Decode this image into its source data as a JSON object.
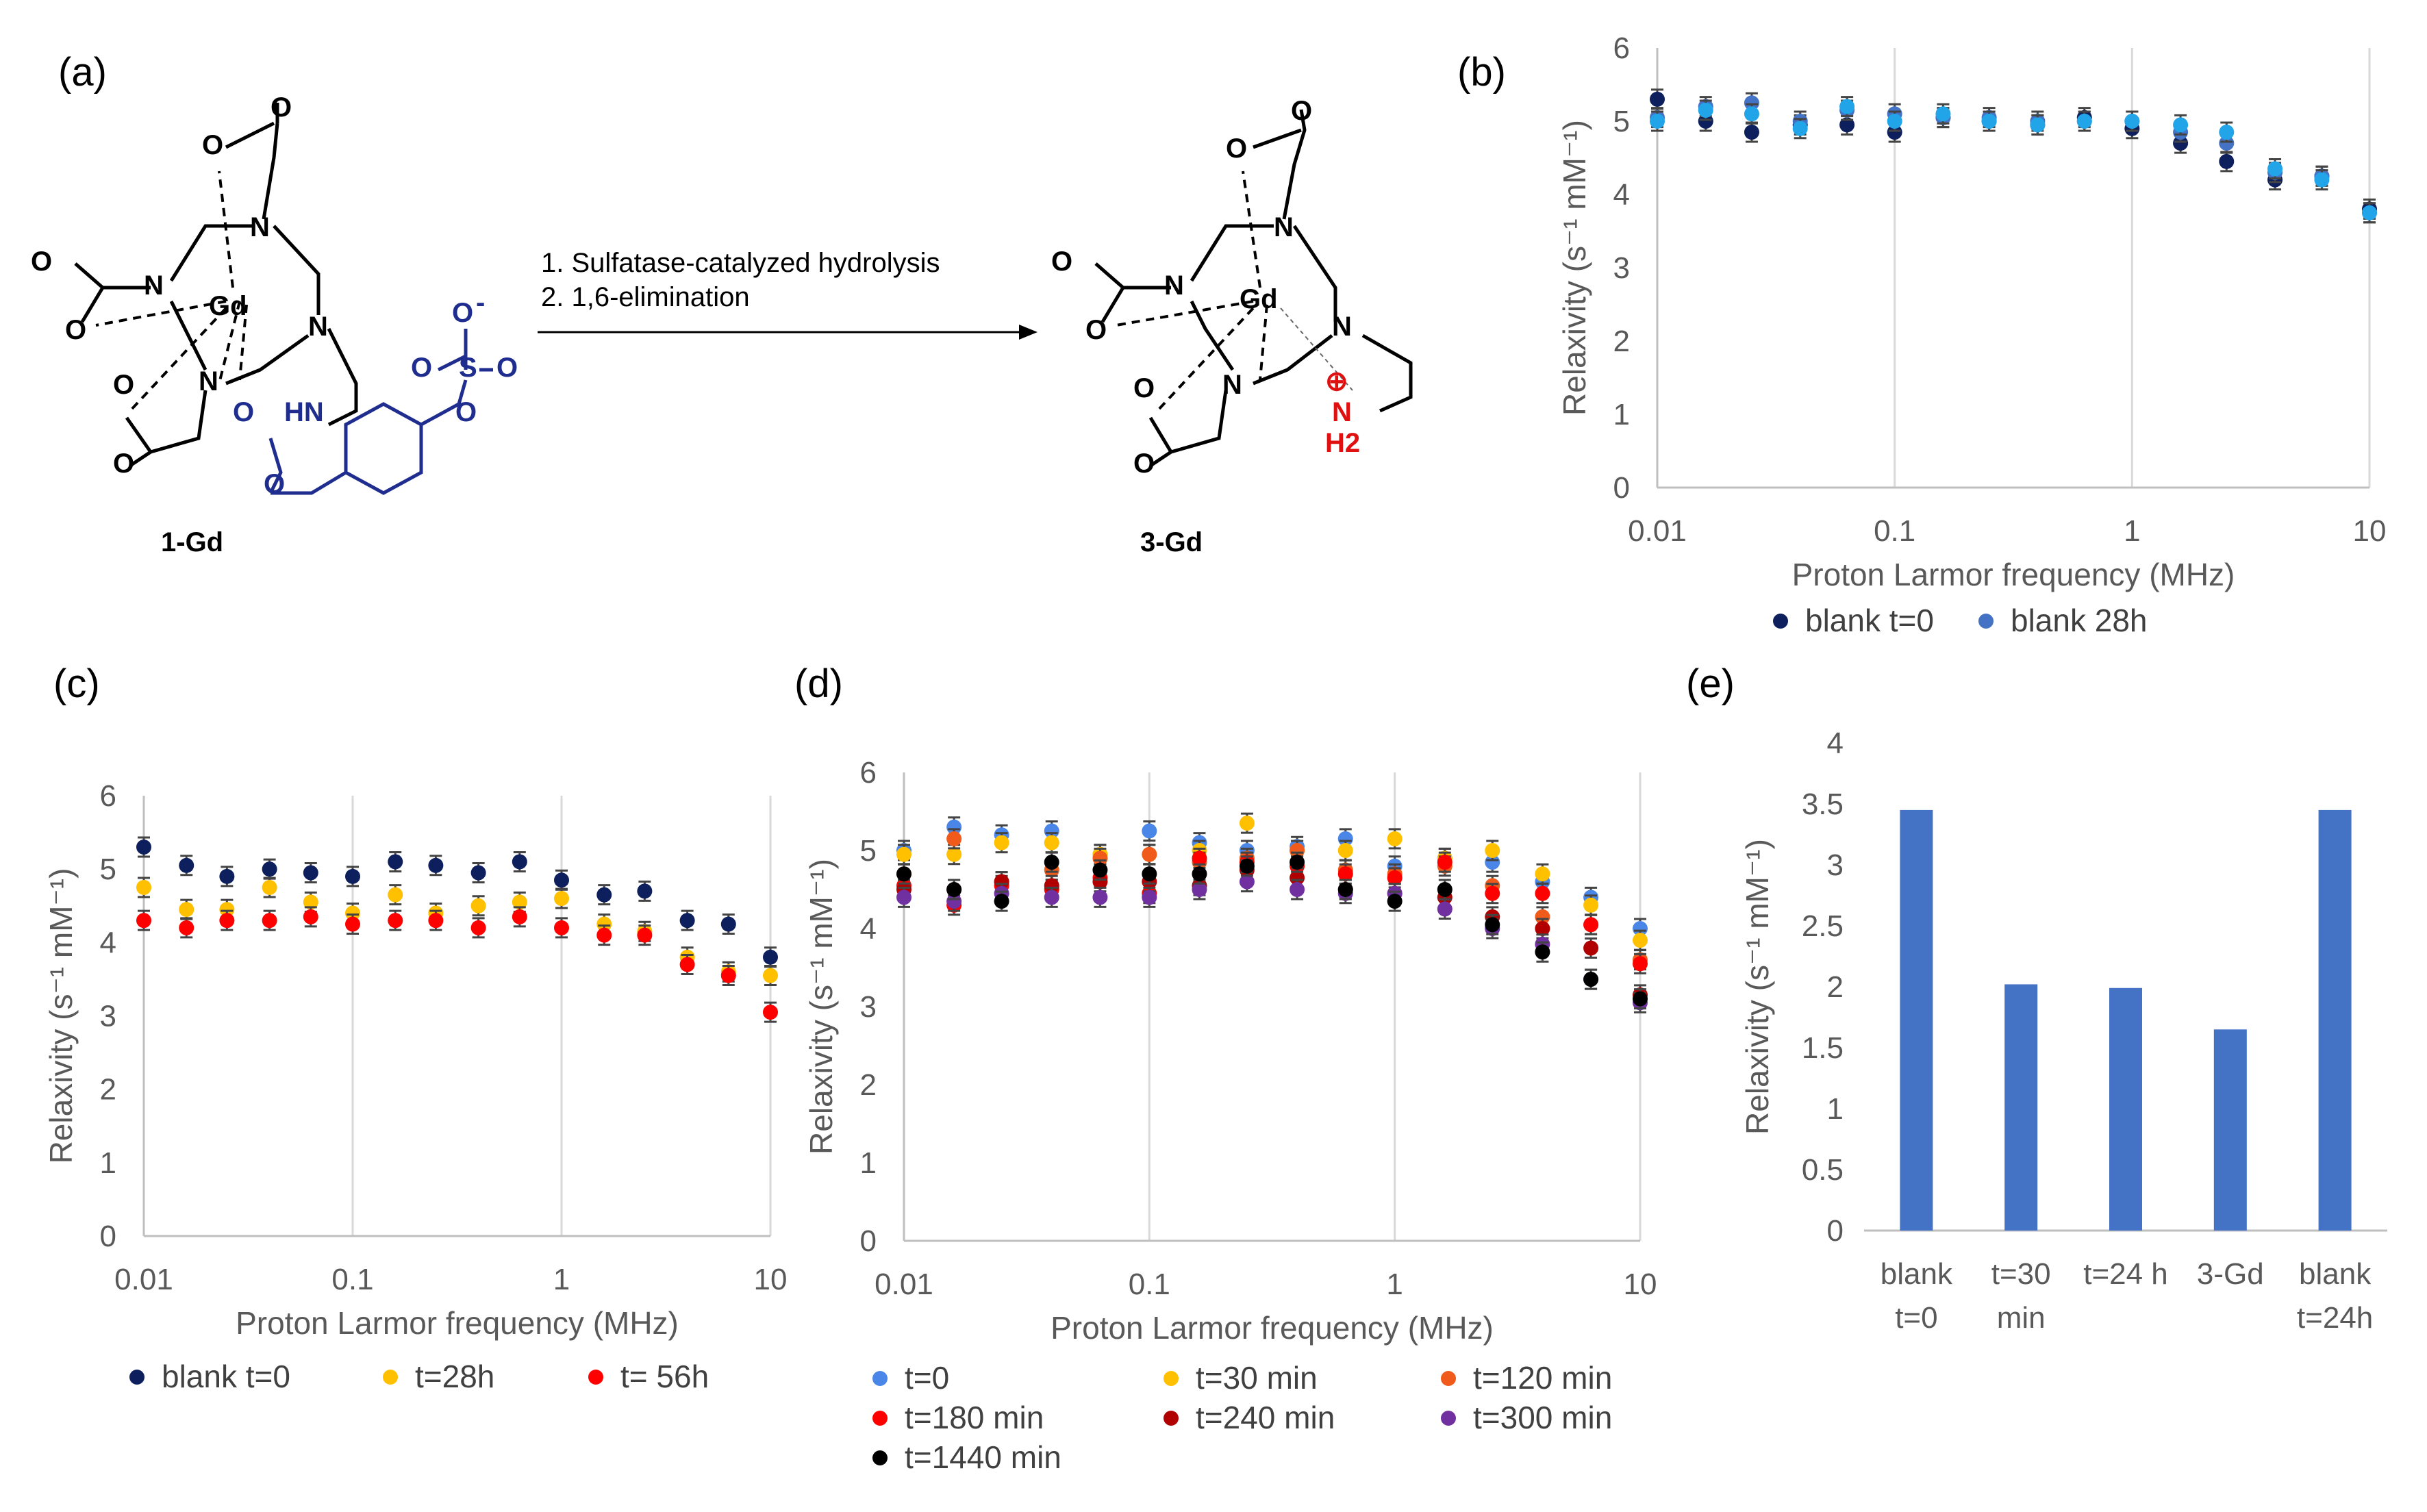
{
  "panel_labels": [
    "(a)",
    "(b)",
    "(c)",
    "(d)",
    "(e)"
  ],
  "scheme": {
    "reactant_label": "1-Gd",
    "product_label": "3-Gd",
    "step1": "1. Sulfatase-catalyzed hydrolysis",
    "step2": "2. 1,6-elimination",
    "atoms": {
      "gd": "Gd",
      "n": "N",
      "o": "O",
      "s": "S",
      "hn": "HN",
      "nh": "N",
      "h2": "H2",
      "minus": "-",
      "plus": "⊕"
    }
  },
  "colors": {
    "navy": "#0d1f5c",
    "mid_blue": "#4472c4",
    "cyan": "#22a5e8",
    "light_blue": "#4a86e8",
    "yellow": "#ffc000",
    "orange": "#f05a1a",
    "red": "#ff0000",
    "dark_red": "#b00000",
    "purple": "#7030a0",
    "black": "#000000",
    "bar": "#4472c4"
  },
  "chart_data": [
    {
      "id": "b",
      "type": "scatter",
      "x_scale": "log",
      "xlim": [
        0.01,
        10
      ],
      "ylim": [
        0,
        6
      ],
      "x_ticks": [
        "0.01",
        "0.1",
        "1",
        "10"
      ],
      "y_ticks": [
        "0",
        "1",
        "2",
        "3",
        "4",
        "5",
        "6"
      ],
      "xlabel": "Proton Larmor frequency (MHz)",
      "ylabel": "Relaxivity (s⁻¹ mM⁻¹)",
      "x": [
        0.01,
        0.016,
        0.025,
        0.04,
        0.063,
        0.1,
        0.16,
        0.25,
        0.4,
        0.63,
        1.0,
        1.6,
        2.5,
        4.0,
        6.3,
        10.0
      ],
      "series": [
        {
          "name": "blank t=0",
          "color_key": "navy",
          "values": [
            5.3,
            5.0,
            4.85,
            4.95,
            4.95,
            4.85,
            5.05,
            5.0,
            4.95,
            5.05,
            4.9,
            4.7,
            4.45,
            4.2,
            4.25,
            3.8
          ]
        },
        {
          "name": "blank 28h",
          "color_key": "mid_blue",
          "values": [
            5.05,
            5.2,
            5.25,
            5.0,
            5.15,
            5.1,
            5.05,
            5.05,
            5.0,
            5.0,
            5.0,
            4.85,
            4.7,
            4.3,
            4.25,
            3.75
          ]
        },
        {
          "name": "",
          "color_key": "cyan",
          "values": [
            5.0,
            5.15,
            5.1,
            4.9,
            5.2,
            5.0,
            5.1,
            5.0,
            4.95,
            5.0,
            5.0,
            4.95,
            4.85,
            4.35,
            4.2,
            3.75
          ]
        }
      ],
      "legend": [
        {
          "label": "blank t=0",
          "color_key": "navy"
        },
        {
          "label": "blank 28h",
          "color_key": "mid_blue"
        }
      ]
    },
    {
      "id": "c",
      "type": "scatter",
      "x_scale": "log",
      "xlim": [
        0.01,
        10
      ],
      "ylim": [
        0,
        6
      ],
      "x_ticks": [
        "0.01",
        "0.1",
        "1",
        "10"
      ],
      "y_ticks": [
        "0",
        "1",
        "2",
        "3",
        "4",
        "5",
        "6"
      ],
      "xlabel": "Proton Larmor frequency (MHz)",
      "ylabel": "Relaxivity (s⁻¹ mM⁻¹)",
      "x": [
        0.01,
        0.016,
        0.025,
        0.04,
        0.063,
        0.1,
        0.16,
        0.25,
        0.4,
        0.63,
        1.0,
        1.6,
        2.5,
        4.0,
        6.3,
        10.0
      ],
      "series": [
        {
          "name": "blank t=0",
          "color_key": "navy",
          "values": [
            5.3,
            5.05,
            4.9,
            5.0,
            4.95,
            4.9,
            5.1,
            5.05,
            4.95,
            5.1,
            4.85,
            4.65,
            4.7,
            4.3,
            4.25,
            3.8
          ]
        },
        {
          "name": "t=28h",
          "color_key": "yellow",
          "values": [
            4.75,
            4.45,
            4.45,
            4.75,
            4.55,
            4.4,
            4.65,
            4.4,
            4.5,
            4.55,
            4.6,
            4.25,
            4.15,
            3.8,
            3.6,
            3.55
          ]
        },
        {
          "name": "t= 56h",
          "color_key": "red",
          "values": [
            4.3,
            4.2,
            4.3,
            4.3,
            4.35,
            4.25,
            4.3,
            4.3,
            4.2,
            4.35,
            4.2,
            4.1,
            4.1,
            3.7,
            3.55,
            3.05
          ]
        }
      ],
      "legend": [
        {
          "label": "blank t=0",
          "color_key": "navy"
        },
        {
          "label": "t=28h",
          "color_key": "yellow"
        },
        {
          "label": "t= 56h",
          "color_key": "red"
        }
      ]
    },
    {
      "id": "d",
      "type": "scatter",
      "x_scale": "log",
      "xlim": [
        0.01,
        10
      ],
      "ylim": [
        0,
        6
      ],
      "x_ticks": [
        "0.01",
        "0.1",
        "1",
        "10"
      ],
      "y_ticks": [
        "0",
        "1",
        "2",
        "3",
        "4",
        "5",
        "6"
      ],
      "xlabel": "Proton Larmor frequency (MHz)",
      "ylabel": "Relaxivity (s⁻¹ mM⁻¹)",
      "x": [
        0.01,
        0.016,
        0.025,
        0.04,
        0.063,
        0.1,
        0.16,
        0.25,
        0.4,
        0.63,
        1.0,
        1.6,
        2.5,
        4.0,
        6.3,
        10.0
      ],
      "series": [
        {
          "name": "t=0",
          "color_key": "light_blue",
          "values": [
            5.0,
            5.3,
            5.2,
            5.25,
            4.95,
            5.25,
            5.1,
            5.0,
            5.05,
            5.15,
            4.8,
            4.9,
            4.85,
            4.6,
            4.4,
            4.0
          ]
        },
        {
          "name": "t=30 min",
          "color_key": "yellow",
          "values": [
            4.95,
            4.95,
            5.1,
            5.1,
            4.95,
            4.95,
            5.0,
            5.35,
            5.0,
            5.0,
            5.15,
            4.9,
            5.0,
            4.7,
            4.3,
            3.85
          ]
        },
        {
          "name": "t=120 min",
          "color_key": "orange",
          "values": [
            4.7,
            5.15,
            4.6,
            4.75,
            4.9,
            4.95,
            4.85,
            4.9,
            5.0,
            4.75,
            4.7,
            4.8,
            4.55,
            4.15,
            4.05,
            3.6
          ]
        },
        {
          "name": "t=180 min",
          "color_key": "red",
          "values": [
            4.55,
            4.3,
            4.55,
            4.5,
            4.65,
            4.45,
            4.9,
            4.85,
            4.8,
            4.7,
            4.65,
            4.85,
            4.45,
            4.45,
            4.05,
            3.55
          ]
        },
        {
          "name": "t=240 min",
          "color_key": "dark_red",
          "values": [
            4.5,
            4.5,
            4.6,
            4.55,
            4.6,
            4.6,
            4.55,
            4.75,
            4.65,
            4.5,
            4.45,
            4.4,
            4.15,
            4.0,
            3.75,
            3.15
          ]
        },
        {
          "name": "t=300 min",
          "color_key": "purple",
          "values": [
            4.4,
            4.35,
            4.45,
            4.4,
            4.4,
            4.4,
            4.5,
            4.6,
            4.5,
            4.45,
            4.45,
            4.25,
            4.0,
            3.8,
            3.35,
            3.05
          ]
        },
        {
          "name": "t=1440 min",
          "color_key": "black",
          "values": [
            4.7,
            4.5,
            4.35,
            4.85,
            4.75,
            4.7,
            4.7,
            4.8,
            4.85,
            4.5,
            4.35,
            4.5,
            4.05,
            3.7,
            3.35,
            3.1
          ]
        }
      ],
      "legend": [
        {
          "label": "t=0",
          "color_key": "light_blue"
        },
        {
          "label": "t=30 min",
          "color_key": "yellow"
        },
        {
          "label": "t=120 min",
          "color_key": "orange"
        },
        {
          "label": "t=180 min",
          "color_key": "red"
        },
        {
          "label": "t=240 min",
          "color_key": "dark_red"
        },
        {
          "label": "t=300 min",
          "color_key": "purple"
        },
        {
          "label": "t=1440 min",
          "color_key": "black"
        }
      ]
    },
    {
      "id": "e",
      "type": "bar",
      "ylim": [
        0,
        4
      ],
      "y_ticks": [
        "0",
        "0.5",
        "1",
        "1.5",
        "2",
        "2.5",
        "3",
        "3.5",
        "4"
      ],
      "ylabel": "Relaxivity (s⁻¹ mM⁻¹)",
      "categories": [
        {
          "line1": "blank",
          "line2": "t=0"
        },
        {
          "line1": "t=30",
          "line2": "min"
        },
        {
          "line1": "t=24 h",
          "line2": ""
        },
        {
          "line1": "3-Gd",
          "line2": ""
        },
        {
          "line1": "blank",
          "line2": "t=24h"
        }
      ],
      "values": [
        3.45,
        2.02,
        1.99,
        1.65,
        3.45
      ],
      "color_key": "bar"
    }
  ]
}
